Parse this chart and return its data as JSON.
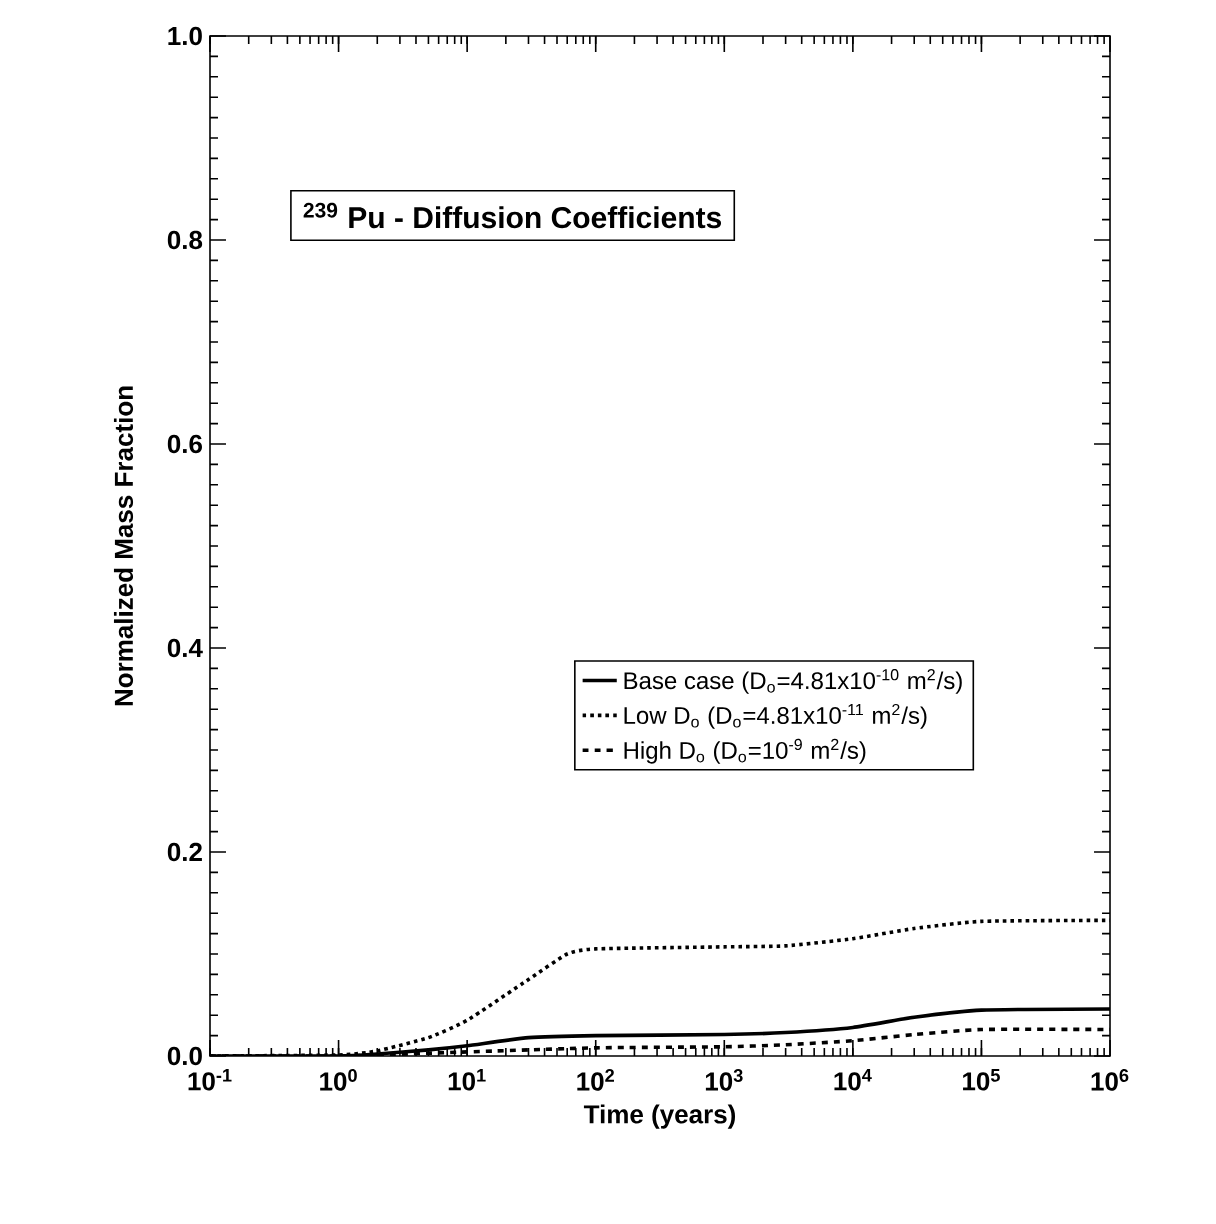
{
  "chart_data": {
    "type": "line",
    "title": "$^{239}$ Pu - Diffusion Coefficients",
    "xlabel": "Time (years)",
    "ylabel": "Normalized Mass Fraction",
    "log": "x",
    "xlim": [
      0.1,
      1000000
    ],
    "ylim": [
      0,
      1
    ],
    "xticks": [
      {
        "value": 0.1,
        "label": "10$^{-1}$"
      },
      {
        "value": 1,
        "label": "10$^{0}$"
      },
      {
        "value": 10,
        "label": "10$^{1}$"
      },
      {
        "value": 100,
        "label": "10$^{2}$"
      },
      {
        "value": 1000,
        "label": "10$^{3}$"
      },
      {
        "value": 10000,
        "label": "10$^{4}$"
      },
      {
        "value": 100000,
        "label": "10$^{5}$"
      },
      {
        "value": 1000000,
        "label": "10$^{6}$"
      }
    ],
    "yticks": [
      {
        "value": 0,
        "label": "0.0"
      },
      {
        "value": 0.2,
        "label": "0.2"
      },
      {
        "value": 0.4,
        "label": "0.4"
      },
      {
        "value": 0.6,
        "label": "0.6"
      },
      {
        "value": 0.8,
        "label": "0.8"
      },
      {
        "value": 1,
        "label": "1.0"
      }
    ],
    "legend": "right",
    "marker": "none",
    "grid": false,
    "series": [
      {
        "name": "Base case (D$_{o}$=4.81x10$^{-10}$ m$^{2}$/s)",
        "color": "#000000",
        "line_style": "solid",
        "x": [
          0.1,
          1,
          2,
          5,
          10,
          30,
          100,
          1000,
          3000,
          10000,
          30000,
          100000,
          1000000
        ],
        "values": [
          0,
          0,
          0.002,
          0.006,
          0.01,
          0.018,
          0.02,
          0.021,
          0.023,
          0.028,
          0.038,
          0.045,
          0.046
        ]
      },
      {
        "name": "Low D$_{o}$ (D$_{o}$=4.81x10$^{-11}$ m$^{2}$/s)",
        "color": "#000000",
        "line_style": "dotted",
        "x": [
          0.1,
          1,
          2,
          5,
          10,
          30,
          60,
          100,
          1000,
          3000,
          10000,
          30000,
          100000,
          1000000
        ],
        "values": [
          0,
          0.001,
          0.005,
          0.018,
          0.035,
          0.075,
          0.1,
          0.105,
          0.107,
          0.108,
          0.115,
          0.125,
          0.132,
          0.133
        ]
      },
      {
        "name": "High D$_{o}$ (D$_{o}$=10$^{-9}$ m$^{2}$/s)",
        "color": "#000000",
        "line_style": "dashed",
        "x": [
          0.1,
          1,
          2,
          10,
          100,
          1000,
          3000,
          10000,
          30000,
          100000,
          1000000
        ],
        "values": [
          0,
          0,
          0.001,
          0.004,
          0.008,
          0.009,
          0.011,
          0.015,
          0.021,
          0.026,
          0.026
        ]
      }
    ]
  }
}
